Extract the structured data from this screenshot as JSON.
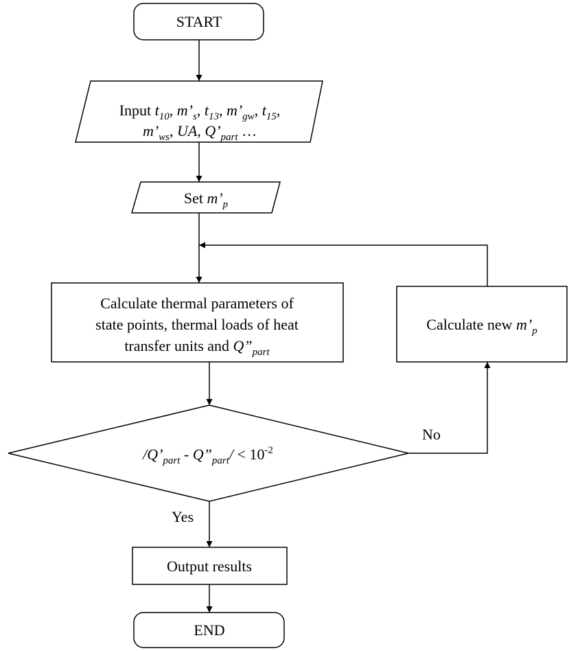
{
  "nodes": [
    {
      "lines": [
        [
          {
            "t": "START"
          }
        ]
      ]
    },
    {
      "lines": [
        [
          {
            "t": "Input "
          },
          {
            "t": "t",
            "i": true
          },
          {
            "t": "10",
            "i": true,
            "sub": true
          },
          {
            "t": ", "
          },
          {
            "t": "m’",
            "i": true
          },
          {
            "t": "s",
            "i": true,
            "sub": true
          },
          {
            "t": ", "
          },
          {
            "t": "t",
            "i": true
          },
          {
            "t": "13",
            "i": true,
            "sub": true
          },
          {
            "t": ", "
          },
          {
            "t": "m’",
            "i": true
          },
          {
            "t": "gw",
            "i": true,
            "sub": true
          },
          {
            "t": ", "
          },
          {
            "t": "t",
            "i": true
          },
          {
            "t": "15",
            "i": true,
            "sub": true
          },
          {
            "t": ","
          }
        ],
        [
          {
            "t": "m’",
            "i": true
          },
          {
            "t": "ws",
            "i": true,
            "sub": true
          },
          {
            "t": ", "
          },
          {
            "t": "UA",
            "i": true
          },
          {
            "t": ", "
          },
          {
            "t": "Q’",
            "i": true
          },
          {
            "t": "part",
            "i": true,
            "sub": true
          },
          {
            "t": " …"
          }
        ]
      ]
    },
    {
      "lines": [
        [
          {
            "t": "Set "
          },
          {
            "t": "m’",
            "i": true
          },
          {
            "t": "p",
            "i": true,
            "sub": true
          }
        ]
      ]
    },
    {
      "lines": [
        [
          {
            "t": "Calculate thermal parameters of"
          }
        ],
        [
          {
            "t": "state points, thermal loads of heat"
          }
        ],
        [
          {
            "t": "transfer units and "
          },
          {
            "t": "Q”",
            "i": true
          },
          {
            "t": "part",
            "i": true,
            "sub": true
          }
        ]
      ]
    },
    {
      "lines": [
        [
          {
            "t": "/",
            "i": true
          },
          {
            "t": "Q’",
            "i": true
          },
          {
            "t": "part",
            "i": true,
            "sub": true
          },
          {
            "t": " - "
          },
          {
            "t": "Q”",
            "i": true
          },
          {
            "t": "part",
            "i": true,
            "sub": true
          },
          {
            "t": "/",
            "i": true
          },
          {
            "t": " < "
          },
          {
            "t": "10"
          },
          {
            "t": "-2",
            "sup": true
          }
        ]
      ]
    },
    {
      "lines": [
        [
          {
            "t": "Output results"
          }
        ]
      ]
    },
    {
      "lines": [
        [
          {
            "t": "END"
          }
        ]
      ]
    },
    {
      "lines": [
        [
          {
            "t": "Calculate new "
          },
          {
            "t": "m’",
            "i": true
          },
          {
            "t": "p",
            "i": true,
            "sub": true
          }
        ]
      ]
    }
  ],
  "edge_labels": [
    "No",
    "Yes"
  ]
}
